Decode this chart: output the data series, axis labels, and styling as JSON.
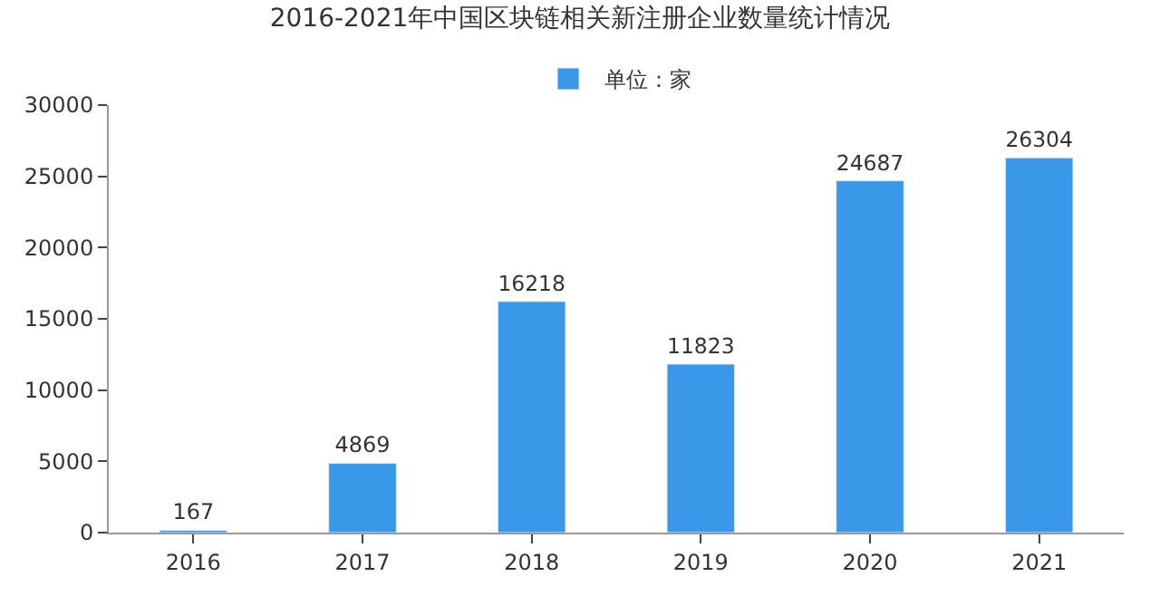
{
  "chart_data": {
    "type": "bar",
    "title": "2016-2021年中国区块链相关新注册企业数量统计情况",
    "categories": [
      "2016",
      "2017",
      "2018",
      "2019",
      "2020",
      "2021"
    ],
    "series": [
      {
        "name": "单位：家",
        "color": "#3a98e8",
        "values": [
          167,
          4869,
          16218,
          11823,
          24687,
          26304
        ]
      }
    ],
    "ylim": [
      0,
      30000
    ],
    "yticks": [
      0,
      5000,
      10000,
      15000,
      20000,
      25000,
      30000
    ],
    "data_labels": true,
    "legend": "top"
  }
}
